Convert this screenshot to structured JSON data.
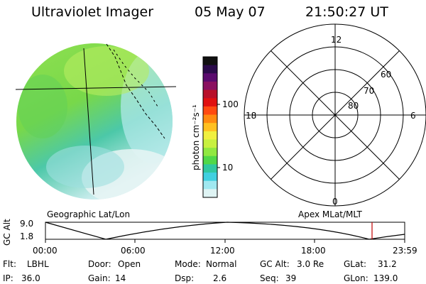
{
  "header": {
    "instrument": "Ultraviolet Imager",
    "date": "05 May 07",
    "time": "21:50:27 UT"
  },
  "colorbar": {
    "unit_label": "photon cm⁻²s⁻¹",
    "ticks": [
      "100",
      "10"
    ],
    "colors": [
      "#101010",
      "#2a0a4a",
      "#5a0a6e",
      "#8a1060",
      "#b8102a",
      "#e01010",
      "#ff4a10",
      "#ff8a10",
      "#ffc020",
      "#f0f040",
      "#c8f040",
      "#90e840",
      "#50d848",
      "#30c8a0",
      "#40d0e0",
      "#a0e8f0",
      "#dff4f4"
    ]
  },
  "left_panel": {
    "caption": "Geographic Lat/Lon"
  },
  "right_panel": {
    "caption": "Apex  MLat/MLT",
    "mlt_labels": {
      "top": "12",
      "bottom": "0",
      "left": "18",
      "right": "6"
    },
    "mlat_labels": [
      "60",
      "70",
      "80"
    ]
  },
  "timeline": {
    "ylabel": "GC Alt",
    "yticks": [
      "9.0",
      "1.8"
    ],
    "xticks": [
      "00:00",
      "06:00",
      "12:00",
      "18:00",
      "23:59"
    ],
    "current_time_marker": "21:50"
  },
  "info": {
    "flt_label": "Flt:",
    "flt_value": "LBHL",
    "ip_label": "IP:",
    "ip_value": "36.0",
    "door_label": "Door:",
    "door_value": "Open",
    "gain_label": "Gain:",
    "gain_value": "14",
    "mode_label": "Mode:",
    "mode_value": "Normal",
    "dsp_label": "Dsp:",
    "dsp_value": "2.6",
    "gcalt_label": "GC Alt:",
    "gcalt_value": "3.0 Re",
    "seq_label": "Seq:",
    "seq_value": "39",
    "glat_label": "GLat:",
    "glat_value": "31.2",
    "glon_label": "GLon:",
    "glon_value": "139.0"
  }
}
